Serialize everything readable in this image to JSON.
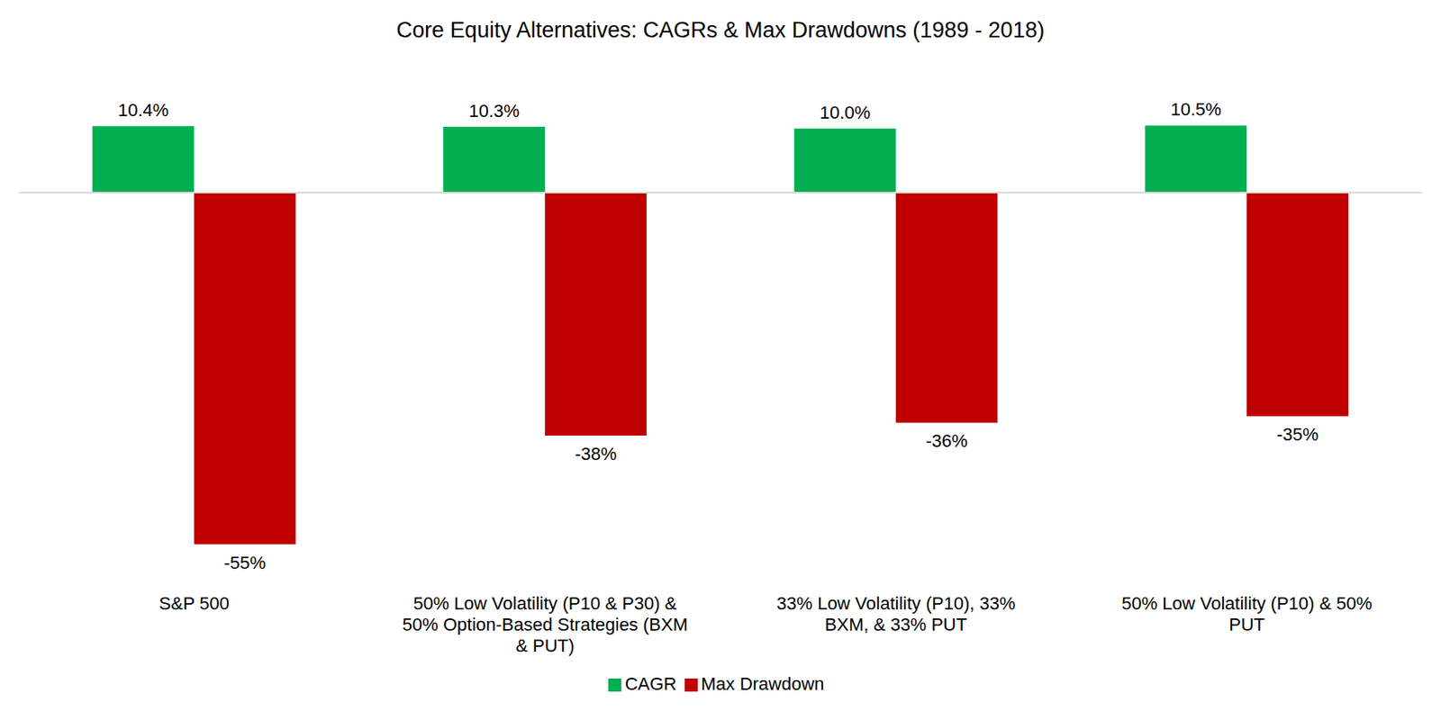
{
  "chart_data": {
    "type": "bar",
    "title": "Core Equity Alternatives: CAGRs & Max Drawdowns (1989 - 2018)",
    "categories": [
      "S&P 500",
      "50% Low Volatility (P10 & P30) & 50% Option-Based Strategies (BXM & PUT)",
      "33% Low Volatility (P10), 33% BXM, & 33% PUT",
      "50% Low Volatility (P10) & 50% PUT"
    ],
    "series": [
      {
        "name": "CAGR",
        "color": "#00b050",
        "values": [
          10.4,
          10.3,
          10.0,
          10.5
        ],
        "value_labels": [
          "10.4%",
          "10.3%",
          "10.0%",
          "10.5%"
        ]
      },
      {
        "name": "Max Drawdown",
        "color": "#c00000",
        "values": [
          -55,
          -38,
          -36,
          -35
        ],
        "value_labels": [
          "-55%",
          "-38%",
          "-36%",
          "-35%"
        ]
      }
    ],
    "ylim": [
      -60,
      15
    ],
    "tick_labels": "x",
    "data_labels": true,
    "legend": "bottom",
    "grid": false
  }
}
